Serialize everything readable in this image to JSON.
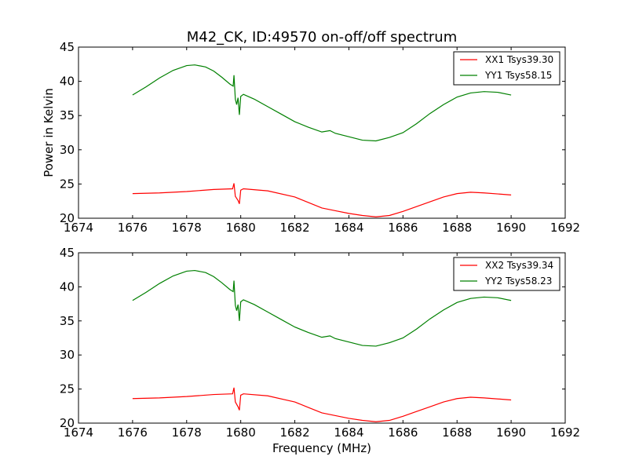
{
  "figure": {
    "title": "M42_CK, ID:49570 on-off/off spectrum",
    "ylabel": "Power in Kelvin",
    "xlabel": "Frequency (MHz)"
  },
  "chart_data": [
    {
      "type": "line",
      "xlim": [
        1674,
        1692
      ],
      "ylim": [
        20,
        45
      ],
      "x_ticks": [
        "1674",
        "1676",
        "1678",
        "1680",
        "1682",
        "1684",
        "1686",
        "1688",
        "1690",
        "1692"
      ],
      "y_ticks": [
        "20",
        "25",
        "30",
        "35",
        "40",
        "45"
      ],
      "legend_position": "top-right",
      "series": [
        {
          "name": "XX1 Tsys39.30",
          "color": "#ff0000",
          "points": [
            [
              1676.0,
              23.6
            ],
            [
              1677.0,
              23.7
            ],
            [
              1678.0,
              23.9
            ],
            [
              1679.0,
              24.2
            ],
            [
              1679.7,
              24.3
            ],
            [
              1679.75,
              25.1
            ],
            [
              1679.8,
              23.2
            ],
            [
              1679.9,
              22.6
            ],
            [
              1679.95,
              22.1
            ],
            [
              1680.0,
              24.1
            ],
            [
              1680.1,
              24.3
            ],
            [
              1681.0,
              24.0
            ],
            [
              1682.0,
              23.1
            ],
            [
              1682.5,
              22.3
            ],
            [
              1683.0,
              21.5
            ],
            [
              1683.5,
              21.1
            ],
            [
              1684.0,
              20.7
            ],
            [
              1684.5,
              20.4
            ],
            [
              1685.0,
              20.2
            ],
            [
              1685.5,
              20.4
            ],
            [
              1686.0,
              21.0
            ],
            [
              1686.5,
              21.7
            ],
            [
              1687.0,
              22.4
            ],
            [
              1687.5,
              23.1
            ],
            [
              1688.0,
              23.6
            ],
            [
              1688.5,
              23.8
            ],
            [
              1689.0,
              23.7
            ],
            [
              1690.0,
              23.4
            ]
          ]
        },
        {
          "name": "YY1 Tsys58.15",
          "color": "#008000",
          "points": [
            [
              1676.0,
              38.0
            ],
            [
              1676.5,
              39.2
            ],
            [
              1677.0,
              40.5
            ],
            [
              1677.5,
              41.6
            ],
            [
              1678.0,
              42.3
            ],
            [
              1678.3,
              42.4
            ],
            [
              1678.7,
              42.1
            ],
            [
              1679.0,
              41.5
            ],
            [
              1679.3,
              40.6
            ],
            [
              1679.6,
              39.6
            ],
            [
              1679.72,
              39.3
            ],
            [
              1679.75,
              40.9
            ],
            [
              1679.8,
              37.4
            ],
            [
              1679.85,
              36.6
            ],
            [
              1679.9,
              37.6
            ],
            [
              1679.95,
              35.1
            ],
            [
              1680.0,
              37.8
            ],
            [
              1680.1,
              38.1
            ],
            [
              1680.5,
              37.4
            ],
            [
              1681.0,
              36.3
            ],
            [
              1681.5,
              35.2
            ],
            [
              1682.0,
              34.1
            ],
            [
              1682.5,
              33.3
            ],
            [
              1683.0,
              32.6
            ],
            [
              1683.3,
              32.8
            ],
            [
              1683.5,
              32.4
            ],
            [
              1684.0,
              31.9
            ],
            [
              1684.5,
              31.4
            ],
            [
              1685.0,
              31.3
            ],
            [
              1685.5,
              31.8
            ],
            [
              1686.0,
              32.5
            ],
            [
              1686.5,
              33.8
            ],
            [
              1687.0,
              35.3
            ],
            [
              1687.5,
              36.6
            ],
            [
              1688.0,
              37.7
            ],
            [
              1688.5,
              38.3
            ],
            [
              1689.0,
              38.5
            ],
            [
              1689.5,
              38.4
            ],
            [
              1690.0,
              38.0
            ]
          ]
        }
      ]
    },
    {
      "type": "line",
      "xlim": [
        1674,
        1692
      ],
      "ylim": [
        20,
        45
      ],
      "x_ticks": [
        "1674",
        "1676",
        "1678",
        "1680",
        "1682",
        "1684",
        "1686",
        "1688",
        "1690",
        "1692"
      ],
      "y_ticks": [
        "20",
        "25",
        "30",
        "35",
        "40",
        "45"
      ],
      "legend_position": "top-right",
      "series": [
        {
          "name": "XX2 Tsys39.34",
          "color": "#ff0000",
          "points": [
            [
              1676.0,
              23.6
            ],
            [
              1677.0,
              23.7
            ],
            [
              1678.0,
              23.9
            ],
            [
              1679.0,
              24.2
            ],
            [
              1679.7,
              24.3
            ],
            [
              1679.75,
              25.2
            ],
            [
              1679.8,
              23.1
            ],
            [
              1679.9,
              22.4
            ],
            [
              1679.95,
              21.9
            ],
            [
              1680.0,
              24.1
            ],
            [
              1680.1,
              24.3
            ],
            [
              1681.0,
              24.0
            ],
            [
              1682.0,
              23.1
            ],
            [
              1682.5,
              22.3
            ],
            [
              1683.0,
              21.5
            ],
            [
              1683.5,
              21.1
            ],
            [
              1684.0,
              20.7
            ],
            [
              1684.5,
              20.4
            ],
            [
              1685.0,
              20.2
            ],
            [
              1685.5,
              20.4
            ],
            [
              1686.0,
              21.0
            ],
            [
              1686.5,
              21.7
            ],
            [
              1687.0,
              22.4
            ],
            [
              1687.5,
              23.1
            ],
            [
              1688.0,
              23.6
            ],
            [
              1688.5,
              23.8
            ],
            [
              1689.0,
              23.7
            ],
            [
              1690.0,
              23.4
            ]
          ]
        },
        {
          "name": "YY2 Tsys58.23",
          "color": "#008000",
          "points": [
            [
              1676.0,
              38.0
            ],
            [
              1676.5,
              39.2
            ],
            [
              1677.0,
              40.5
            ],
            [
              1677.5,
              41.6
            ],
            [
              1678.0,
              42.3
            ],
            [
              1678.3,
              42.4
            ],
            [
              1678.7,
              42.1
            ],
            [
              1679.0,
              41.5
            ],
            [
              1679.3,
              40.6
            ],
            [
              1679.6,
              39.6
            ],
            [
              1679.72,
              39.3
            ],
            [
              1679.75,
              40.9
            ],
            [
              1679.8,
              37.3
            ],
            [
              1679.85,
              36.5
            ],
            [
              1679.9,
              37.4
            ],
            [
              1679.95,
              35.0
            ],
            [
              1680.0,
              37.8
            ],
            [
              1680.1,
              38.1
            ],
            [
              1680.5,
              37.4
            ],
            [
              1681.0,
              36.3
            ],
            [
              1681.5,
              35.2
            ],
            [
              1682.0,
              34.1
            ],
            [
              1682.5,
              33.3
            ],
            [
              1683.0,
              32.6
            ],
            [
              1683.3,
              32.8
            ],
            [
              1683.5,
              32.4
            ],
            [
              1684.0,
              31.9
            ],
            [
              1684.5,
              31.4
            ],
            [
              1685.0,
              31.3
            ],
            [
              1685.5,
              31.8
            ],
            [
              1686.0,
              32.5
            ],
            [
              1686.5,
              33.8
            ],
            [
              1687.0,
              35.3
            ],
            [
              1687.5,
              36.6
            ],
            [
              1688.0,
              37.7
            ],
            [
              1688.5,
              38.3
            ],
            [
              1689.0,
              38.5
            ],
            [
              1689.5,
              38.4
            ],
            [
              1690.0,
              38.0
            ]
          ]
        }
      ]
    }
  ]
}
